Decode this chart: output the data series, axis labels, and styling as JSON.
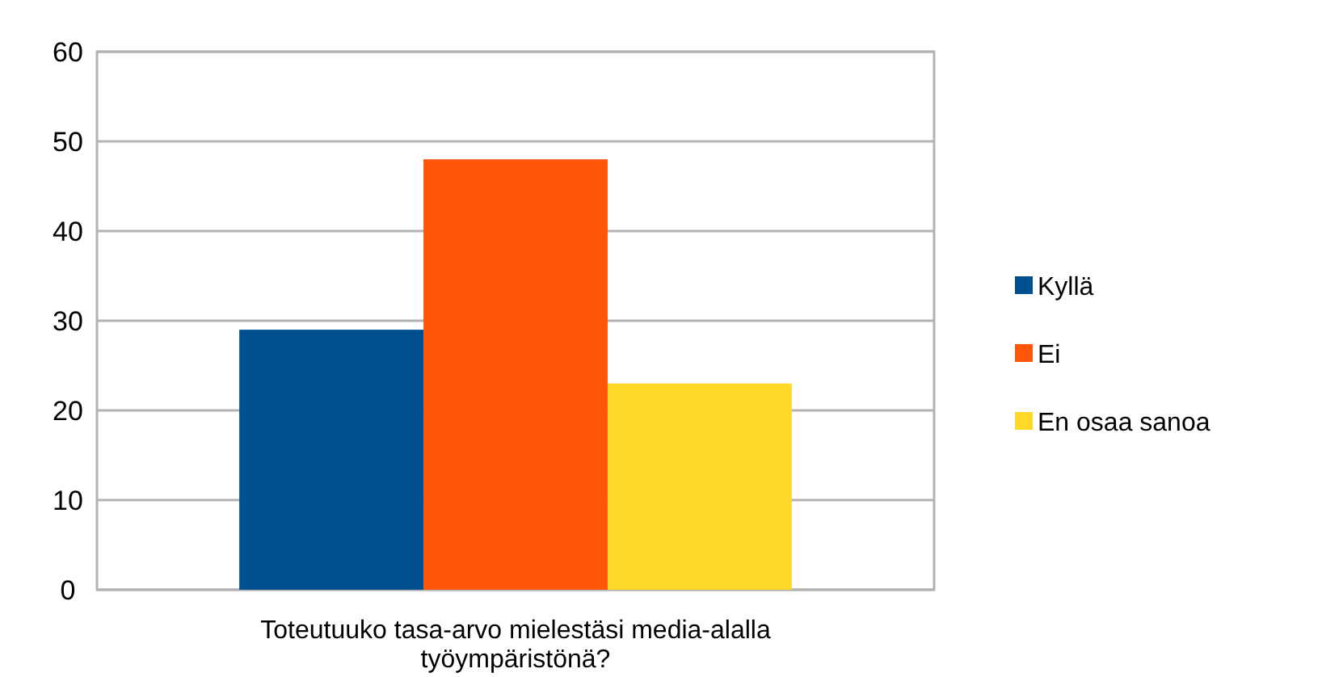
{
  "chart_data": {
    "type": "bar",
    "categories": [
      "Toteutuuko tasa-arvo mielestäsi media-alalla työympäristönä?"
    ],
    "series": [
      {
        "name": "Kyllä",
        "color": "#004f90",
        "values": [
          29
        ]
      },
      {
        "name": "Ei",
        "color": "#ff5509",
        "values": [
          48
        ]
      },
      {
        "name": "En osaa sanoa",
        "color": "#ffd828",
        "values": [
          23
        ]
      }
    ],
    "ylim": [
      0,
      60
    ],
    "yticks": [
      0,
      10,
      20,
      30,
      40,
      50,
      60
    ],
    "grid": "y",
    "legend": "right"
  }
}
